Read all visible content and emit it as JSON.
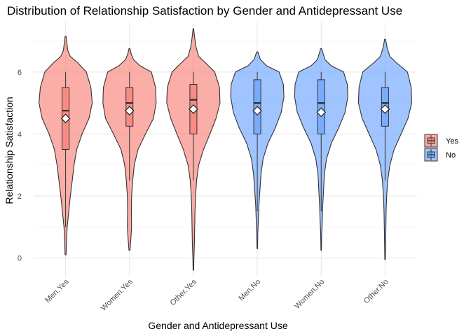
{
  "chart_data": {
    "type": "violin",
    "title": "Distribution of Relationship Satisfaction by Gender and Antidepressant Use",
    "xlabel": "Gender and Antidepressant Use",
    "ylabel": "Relationship Satisfaction",
    "ylim": [
      -0.6,
      7.6
    ],
    "yticks": [
      0,
      2,
      4,
      6
    ],
    "grid": true,
    "legend": {
      "position": "right",
      "title": "",
      "entries": [
        {
          "label": "Yes",
          "color": "#F8766D"
        },
        {
          "label": "No",
          "color": "#619CFF"
        }
      ]
    },
    "categories": [
      "Men.Yes",
      "Women.Yes",
      "Other.Yes",
      "Men.No",
      "Women.No",
      "Other.No"
    ],
    "groups": [
      {
        "category": "Men.Yes",
        "fill": "Yes",
        "range": [
          0.1,
          7.15
        ],
        "box": {
          "q1": 3.5,
          "median": 4.75,
          "q3": 5.5,
          "whisker_low": 1.0,
          "whisker_high": 6.0
        },
        "mean": 4.5,
        "density": [
          [
            0.1,
            0.02
          ],
          [
            0.5,
            0.03
          ],
          [
            1.0,
            0.06
          ],
          [
            1.5,
            0.12
          ],
          [
            2.0,
            0.18
          ],
          [
            2.5,
            0.25
          ],
          [
            3.0,
            0.32
          ],
          [
            3.5,
            0.42
          ],
          [
            4.0,
            0.62
          ],
          [
            4.5,
            0.88
          ],
          [
            5.0,
            1.0
          ],
          [
            5.5,
            0.95
          ],
          [
            6.0,
            0.78
          ],
          [
            6.3,
            0.45
          ],
          [
            6.5,
            0.18
          ],
          [
            6.7,
            0.08
          ],
          [
            7.0,
            0.04
          ],
          [
            7.15,
            0.02
          ]
        ]
      },
      {
        "category": "Women.Yes",
        "fill": "Yes",
        "range": [
          0.25,
          6.75
        ],
        "box": {
          "q1": 4.25,
          "median": 5.0,
          "q3": 5.5,
          "whisker_low": 2.5,
          "whisker_high": 6.0
        },
        "mean": 4.75,
        "density": [
          [
            0.25,
            0.02
          ],
          [
            0.6,
            0.05
          ],
          [
            1.0,
            0.08
          ],
          [
            1.5,
            0.07
          ],
          [
            2.0,
            0.08
          ],
          [
            2.5,
            0.12
          ],
          [
            3.0,
            0.18
          ],
          [
            3.5,
            0.32
          ],
          [
            4.0,
            0.6
          ],
          [
            4.5,
            0.9
          ],
          [
            5.0,
            1.0
          ],
          [
            5.5,
            0.98
          ],
          [
            6.0,
            0.82
          ],
          [
            6.2,
            0.4
          ],
          [
            6.4,
            0.15
          ],
          [
            6.6,
            0.06
          ],
          [
            6.75,
            0.02
          ]
        ]
      },
      {
        "category": "Other.Yes",
        "fill": "Yes",
        "range": [
          -0.4,
          7.4
        ],
        "box": {
          "q1": 4.0,
          "median": 5.1,
          "q3": 5.6,
          "whisker_low": 2.5,
          "whisker_high": 6.0
        },
        "mean": 4.8,
        "density": [
          [
            -0.4,
            0.01
          ],
          [
            0.0,
            0.02
          ],
          [
            0.5,
            0.04
          ],
          [
            1.0,
            0.05
          ],
          [
            1.5,
            0.06
          ],
          [
            2.0,
            0.08
          ],
          [
            2.5,
            0.12
          ],
          [
            3.0,
            0.2
          ],
          [
            3.5,
            0.38
          ],
          [
            4.0,
            0.62
          ],
          [
            4.5,
            0.85
          ],
          [
            5.0,
            1.0
          ],
          [
            5.5,
            0.98
          ],
          [
            6.0,
            0.8
          ],
          [
            6.3,
            0.45
          ],
          [
            6.5,
            0.2
          ],
          [
            6.8,
            0.1
          ],
          [
            7.1,
            0.05
          ],
          [
            7.4,
            0.01
          ]
        ]
      },
      {
        "category": "Men.No",
        "fill": "No",
        "range": [
          0.3,
          6.65
        ],
        "box": {
          "q1": 4.0,
          "median": 5.0,
          "q3": 5.75,
          "whisker_low": 1.5,
          "whisker_high": 6.0
        },
        "mean": 4.75,
        "density": [
          [
            0.3,
            0.01
          ],
          [
            0.8,
            0.02
          ],
          [
            1.2,
            0.04
          ],
          [
            1.7,
            0.06
          ],
          [
            2.2,
            0.1
          ],
          [
            2.7,
            0.14
          ],
          [
            3.2,
            0.22
          ],
          [
            3.7,
            0.4
          ],
          [
            4.2,
            0.68
          ],
          [
            4.7,
            0.9
          ],
          [
            5.2,
            1.0
          ],
          [
            5.6,
            0.98
          ],
          [
            6.0,
            0.82
          ],
          [
            6.2,
            0.35
          ],
          [
            6.4,
            0.12
          ],
          [
            6.65,
            0.02
          ]
        ]
      },
      {
        "category": "Women.No",
        "fill": "No",
        "range": [
          0.25,
          6.75
        ],
        "box": {
          "q1": 4.0,
          "median": 5.0,
          "q3": 5.75,
          "whisker_low": 1.5,
          "whisker_high": 6.0
        },
        "mean": 4.7,
        "density": [
          [
            0.25,
            0.01
          ],
          [
            0.8,
            0.02
          ],
          [
            1.2,
            0.04
          ],
          [
            1.7,
            0.06
          ],
          [
            2.2,
            0.09
          ],
          [
            2.7,
            0.12
          ],
          [
            3.2,
            0.2
          ],
          [
            3.7,
            0.38
          ],
          [
            4.2,
            0.66
          ],
          [
            4.7,
            0.9
          ],
          [
            5.2,
            1.0
          ],
          [
            5.6,
            0.98
          ],
          [
            6.0,
            0.84
          ],
          [
            6.2,
            0.38
          ],
          [
            6.4,
            0.14
          ],
          [
            6.75,
            0.02
          ]
        ]
      },
      {
        "category": "Other.No",
        "fill": "No",
        "range": [
          -0.05,
          7.05
        ],
        "box": {
          "q1": 4.25,
          "median": 5.0,
          "q3": 5.5,
          "whisker_low": 2.5,
          "whisker_high": 6.0
        },
        "mean": 4.8,
        "density": [
          [
            -0.05,
            0.01
          ],
          [
            0.5,
            0.02
          ],
          [
            1.0,
            0.03
          ],
          [
            1.5,
            0.04
          ],
          [
            2.0,
            0.06
          ],
          [
            2.5,
            0.1
          ],
          [
            3.0,
            0.18
          ],
          [
            3.5,
            0.34
          ],
          [
            4.0,
            0.6
          ],
          [
            4.5,
            0.86
          ],
          [
            5.0,
            1.0
          ],
          [
            5.5,
            0.98
          ],
          [
            6.0,
            0.84
          ],
          [
            6.3,
            0.42
          ],
          [
            6.5,
            0.18
          ],
          [
            6.8,
            0.07
          ],
          [
            7.05,
            0.02
          ]
        ]
      }
    ]
  }
}
